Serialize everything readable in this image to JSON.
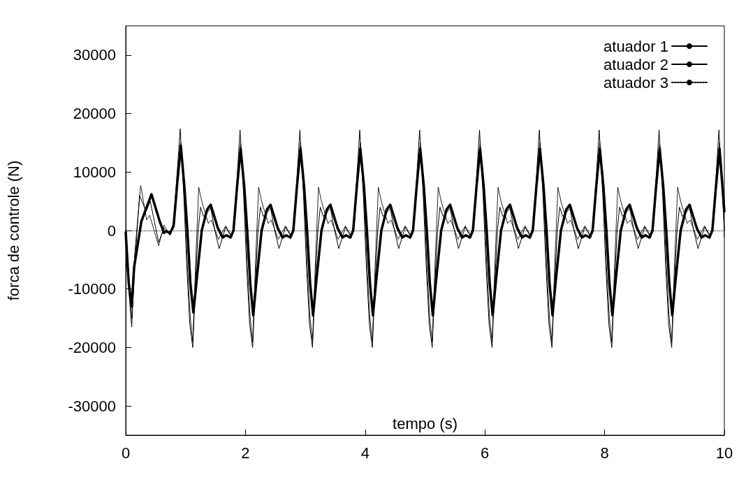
{
  "chart_data": {
    "type": "line",
    "xlabel": "tempo (s)",
    "ylabel": "forca de controle (N)",
    "xlim": [
      0,
      10
    ],
    "xticks": [
      0,
      2,
      4,
      6,
      8,
      10
    ],
    "ylim": [
      -35000,
      35000
    ],
    "yticks": [
      -30000,
      -20000,
      -10000,
      0,
      10000,
      20000,
      30000
    ],
    "grid": false,
    "legend": "top right",
    "marker": "none",
    "ref_lines": [
      {
        "axis": "y",
        "value": 0,
        "color": "#000000",
        "line_style": "dotted"
      }
    ],
    "series": [
      {
        "name": "atuador 1",
        "color": "#000000",
        "line_style": "solid",
        "x": [
          0,
          0.05,
          0.1,
          0.14,
          0.26,
          0.43,
          0.57,
          0.64,
          0.68,
          0.74,
          0.8,
          0.86,
          0.92,
          0.98,
          1.03,
          1.08,
          1.13,
          1.18,
          1.27,
          1.36,
          1.42,
          1.54,
          1.62,
          1.68,
          1.75,
          1.8,
          1.86,
          1.92,
          1.98,
          2.03,
          2.08,
          2.13,
          2.18,
          2.27,
          2.36,
          2.42,
          2.54,
          2.62,
          2.68,
          2.75,
          2.8,
          2.86,
          2.92,
          2.98,
          3.03,
          3.08,
          3.13,
          3.18,
          3.27,
          3.36,
          3.42,
          3.54,
          3.62,
          3.68,
          3.75,
          3.8,
          3.86,
          3.92,
          3.98,
          4.03,
          4.08,
          4.13,
          4.18,
          4.27,
          4.36,
          4.42,
          4.54,
          4.62,
          4.68,
          4.75,
          4.8,
          4.86,
          4.92,
          4.98,
          5.03,
          5.08,
          5.13,
          5.18,
          5.27,
          5.36,
          5.42,
          5.54,
          5.62,
          5.68,
          5.75,
          5.8,
          5.86,
          5.92,
          5.98,
          6.03,
          6.08,
          6.13,
          6.18,
          6.27,
          6.36,
          6.42,
          6.54,
          6.62,
          6.68,
          6.75,
          6.8,
          6.86,
          6.92,
          6.98,
          7.03,
          7.08,
          7.13,
          7.18,
          7.27,
          7.36,
          7.42,
          7.54,
          7.62,
          7.68,
          7.75,
          7.8,
          7.86,
          7.92,
          7.98,
          8.03,
          8.08,
          8.13,
          8.18,
          8.27,
          8.36,
          8.42,
          8.54,
          8.62,
          8.68,
          8.75,
          8.8,
          8.86,
          8.92,
          8.98,
          9.03,
          9.08,
          9.13,
          9.18,
          9.27,
          9.36,
          9.42,
          9.54,
          9.62,
          9.68,
          9.75,
          9.8,
          9.86,
          9.92,
          10
        ],
        "values": [
          -300,
          -9000,
          -13000,
          -6300,
          1500,
          6200,
          1500,
          -400,
          -100,
          -500,
          800,
          8000,
          14500,
          7500,
          0,
          -9000,
          -14000,
          -9000,
          0,
          3600,
          4400,
          400,
          -1200,
          -800,
          -1200,
          0,
          7500,
          14000,
          7500,
          0,
          -9000,
          -14500,
          -9000,
          0,
          3600,
          4400,
          400,
          -1200,
          -800,
          -1200,
          0,
          7500,
          14000,
          7500,
          0,
          -9000,
          -14500,
          -9000,
          0,
          3600,
          4400,
          400,
          -1200,
          -800,
          -1200,
          0,
          7500,
          14000,
          7500,
          0,
          -9000,
          -14500,
          -9000,
          0,
          3600,
          4400,
          400,
          -1200,
          -800,
          -1200,
          0,
          7500,
          14000,
          7500,
          0,
          -9000,
          -14500,
          -9000,
          0,
          3600,
          4400,
          400,
          -1200,
          -800,
          -1200,
          0,
          7500,
          14000,
          7500,
          0,
          -9000,
          -14500,
          -9000,
          0,
          3600,
          4400,
          400,
          -1200,
          -800,
          -1200,
          0,
          7500,
          14000,
          7500,
          0,
          -9000,
          -14500,
          -9000,
          0,
          3600,
          4400,
          400,
          -1200,
          -800,
          -1200,
          0,
          7500,
          14000,
          7500,
          0,
          -9000,
          -14500,
          -9000,
          0,
          3600,
          4400,
          400,
          -1200,
          -800,
          -1200,
          0,
          7500,
          14000,
          7500,
          0,
          -9000,
          -14500,
          -9000,
          0,
          3600,
          4400,
          400,
          -1200,
          -800,
          -1200,
          0,
          7500,
          14000,
          3300
        ]
      },
      {
        "name": "atuador 2",
        "color": "#000000",
        "line_style": "solid",
        "x": [
          0,
          0.05,
          0.1,
          0.15,
          0.23,
          0.34,
          0.41,
          0.55,
          0.64,
          0.74,
          0.8,
          0.86,
          0.91,
          0.97,
          1.02,
          1.07,
          1.12,
          1.17,
          1.21,
          1.25,
          1.3,
          1.42,
          1.49,
          1.56,
          1.67,
          1.77,
          1.82,
          1.86,
          1.91,
          1.97,
          2.02,
          2.07,
          2.12,
          2.17,
          2.21,
          2.25,
          2.3,
          2.42,
          2.49,
          2.56,
          2.67,
          2.77,
          2.82,
          2.86,
          2.91,
          2.97,
          3.02,
          3.07,
          3.12,
          3.17,
          3.21,
          3.25,
          3.3,
          3.42,
          3.49,
          3.56,
          3.67,
          3.77,
          3.82,
          3.86,
          3.91,
          3.97,
          4.02,
          4.07,
          4.12,
          4.17,
          4.21,
          4.25,
          4.3,
          4.42,
          4.49,
          4.56,
          4.67,
          4.77,
          4.82,
          4.86,
          4.91,
          4.97,
          5.02,
          5.07,
          5.12,
          5.17,
          5.21,
          5.25,
          5.3,
          5.42,
          5.49,
          5.56,
          5.67,
          5.77,
          5.82,
          5.86,
          5.91,
          5.97,
          6.02,
          6.07,
          6.12,
          6.17,
          6.21,
          6.25,
          6.3,
          6.42,
          6.49,
          6.56,
          6.67,
          6.77,
          6.82,
          6.86,
          6.91,
          6.97,
          7.02,
          7.07,
          7.12,
          7.17,
          7.21,
          7.25,
          7.3,
          7.42,
          7.49,
          7.56,
          7.67,
          7.77,
          7.82,
          7.86,
          7.91,
          7.97,
          8.02,
          8.07,
          8.12,
          8.17,
          8.21,
          8.25,
          8.3,
          8.42,
          8.49,
          8.56,
          8.67,
          8.77,
          8.82,
          8.86,
          8.91,
          8.97,
          9.02,
          9.07,
          9.12,
          9.17,
          9.21,
          9.25,
          9.3,
          9.42,
          9.49,
          9.56,
          9.67,
          9.77,
          9.82,
          9.86,
          9.91,
          9.97,
          10
        ],
        "values": [
          0,
          -10000,
          -16500,
          -6000,
          6000,
          3300,
          5000,
          -2000,
          400,
          -800,
          1500,
          10000,
          17400,
          6000,
          -6000,
          -16000,
          -20000,
          -8000,
          0,
          4000,
          2400,
          3800,
          0,
          -3100,
          600,
          -1200,
          2000,
          9000,
          17200,
          6000,
          -6000,
          -16000,
          -20000,
          -8000,
          0,
          4000,
          2400,
          3800,
          0,
          -3100,
          600,
          -1200,
          2000,
          9000,
          17200,
          6000,
          -6000,
          -16000,
          -20000,
          -8000,
          0,
          4000,
          2400,
          3800,
          0,
          -3100,
          600,
          -1200,
          2000,
          9000,
          17200,
          6000,
          -6000,
          -16000,
          -20000,
          -8000,
          0,
          4000,
          2400,
          3800,
          0,
          -3100,
          600,
          -1200,
          2000,
          9000,
          17200,
          6000,
          -6000,
          -16000,
          -20000,
          -8000,
          0,
          4000,
          2400,
          3800,
          0,
          -3100,
          600,
          -1200,
          2000,
          9000,
          17200,
          6000,
          -6000,
          -16000,
          -20000,
          -8000,
          0,
          4000,
          2400,
          3800,
          0,
          -3100,
          600,
          -1200,
          2000,
          9000,
          17200,
          6000,
          -6000,
          -16000,
          -20000,
          -8000,
          0,
          4000,
          2400,
          3800,
          0,
          -3100,
          600,
          -1200,
          2000,
          9000,
          17200,
          6000,
          -6000,
          -16000,
          -20000,
          -8000,
          0,
          4000,
          2400,
          3800,
          0,
          -3100,
          600,
          -1200,
          2000,
          9000,
          17200,
          6000,
          -6000,
          -16000,
          -20000,
          -8000,
          0,
          4000,
          2400,
          3800,
          0,
          -3100,
          600,
          -1200,
          2000,
          9000,
          17200,
          6000,
          0
        ]
      },
      {
        "name": "atuador 3",
        "color": "#000000",
        "line_style": "dotted",
        "x": [
          0,
          0.05,
          0.1,
          0.15,
          0.25,
          0.35,
          0.4,
          0.55,
          0.64,
          0.74,
          0.8,
          0.86,
          0.92,
          0.98,
          1.03,
          1.08,
          1.12,
          1.17,
          1.22,
          1.27,
          1.38,
          1.43,
          1.55,
          1.67,
          1.77,
          1.82,
          1.86,
          1.92,
          1.98,
          2.03,
          2.08,
          2.12,
          2.17,
          2.22,
          2.27,
          2.38,
          2.43,
          2.55,
          2.67,
          2.77,
          2.82,
          2.86,
          2.92,
          2.98,
          3.03,
          3.08,
          3.12,
          3.17,
          3.22,
          3.27,
          3.38,
          3.43,
          3.55,
          3.67,
          3.77,
          3.82,
          3.86,
          3.92,
          3.98,
          4.03,
          4.08,
          4.12,
          4.17,
          4.22,
          4.27,
          4.38,
          4.43,
          4.55,
          4.67,
          4.77,
          4.82,
          4.86,
          4.92,
          4.98,
          5.03,
          5.08,
          5.12,
          5.17,
          5.22,
          5.27,
          5.38,
          5.43,
          5.55,
          5.67,
          5.77,
          5.82,
          5.86,
          5.92,
          5.98,
          6.03,
          6.08,
          6.12,
          6.17,
          6.22,
          6.27,
          6.38,
          6.43,
          6.55,
          6.67,
          6.77,
          6.82,
          6.86,
          6.92,
          6.98,
          7.03,
          7.08,
          7.12,
          7.17,
          7.22,
          7.27,
          7.38,
          7.43,
          7.55,
          7.67,
          7.77,
          7.82,
          7.86,
          7.92,
          7.98,
          8.03,
          8.08,
          8.12,
          8.17,
          8.22,
          8.27,
          8.38,
          8.43,
          8.55,
          8.67,
          8.77,
          8.82,
          8.86,
          8.92,
          8.98,
          9.03,
          9.08,
          9.12,
          9.17,
          9.22,
          9.27,
          9.38,
          9.43,
          9.55,
          9.67,
          9.77,
          9.82,
          9.86,
          9.92,
          9.98,
          10
        ],
        "values": [
          0,
          -9000,
          -15000,
          -4000,
          7700,
          1800,
          2600,
          -2600,
          900,
          -800,
          1000,
          8000,
          15000,
          6000,
          -6000,
          -15000,
          -19000,
          -5000,
          7400,
          5000,
          1200,
          1800,
          -1500,
          800,
          -1000,
          1500,
          8000,
          15000,
          6000,
          -6000,
          -15000,
          -19000,
          -5000,
          7400,
          5000,
          1200,
          1800,
          -1500,
          800,
          -1000,
          1500,
          8000,
          15000,
          6000,
          -6000,
          -15000,
          -19000,
          -5000,
          7400,
          5000,
          1200,
          1800,
          -1500,
          800,
          -1000,
          1500,
          8000,
          15000,
          6000,
          -6000,
          -15000,
          -19000,
          -5000,
          7400,
          5000,
          1200,
          1800,
          -1500,
          800,
          -1000,
          1500,
          8000,
          15000,
          6000,
          -6000,
          -15000,
          -19000,
          -5000,
          7400,
          5000,
          1200,
          1800,
          -1500,
          800,
          -1000,
          1500,
          8000,
          15000,
          6000,
          -6000,
          -15000,
          -19000,
          -5000,
          7400,
          5000,
          1200,
          1800,
          -1500,
          800,
          -1000,
          1500,
          8000,
          15000,
          6000,
          -6000,
          -15000,
          -19000,
          -5000,
          7400,
          5000,
          1200,
          1800,
          -1500,
          800,
          -1000,
          1500,
          8000,
          15000,
          6000,
          -6000,
          -15000,
          -19000,
          -5000,
          7400,
          5000,
          1200,
          1800,
          -1500,
          800,
          -1000,
          1500,
          8000,
          15000,
          6000,
          -6000,
          -15000,
          -19000,
          -5000,
          7400,
          5000,
          1200,
          1800,
          -1500,
          800,
          -1000,
          1500,
          8000,
          15000,
          6000,
          -1000
        ]
      }
    ]
  }
}
